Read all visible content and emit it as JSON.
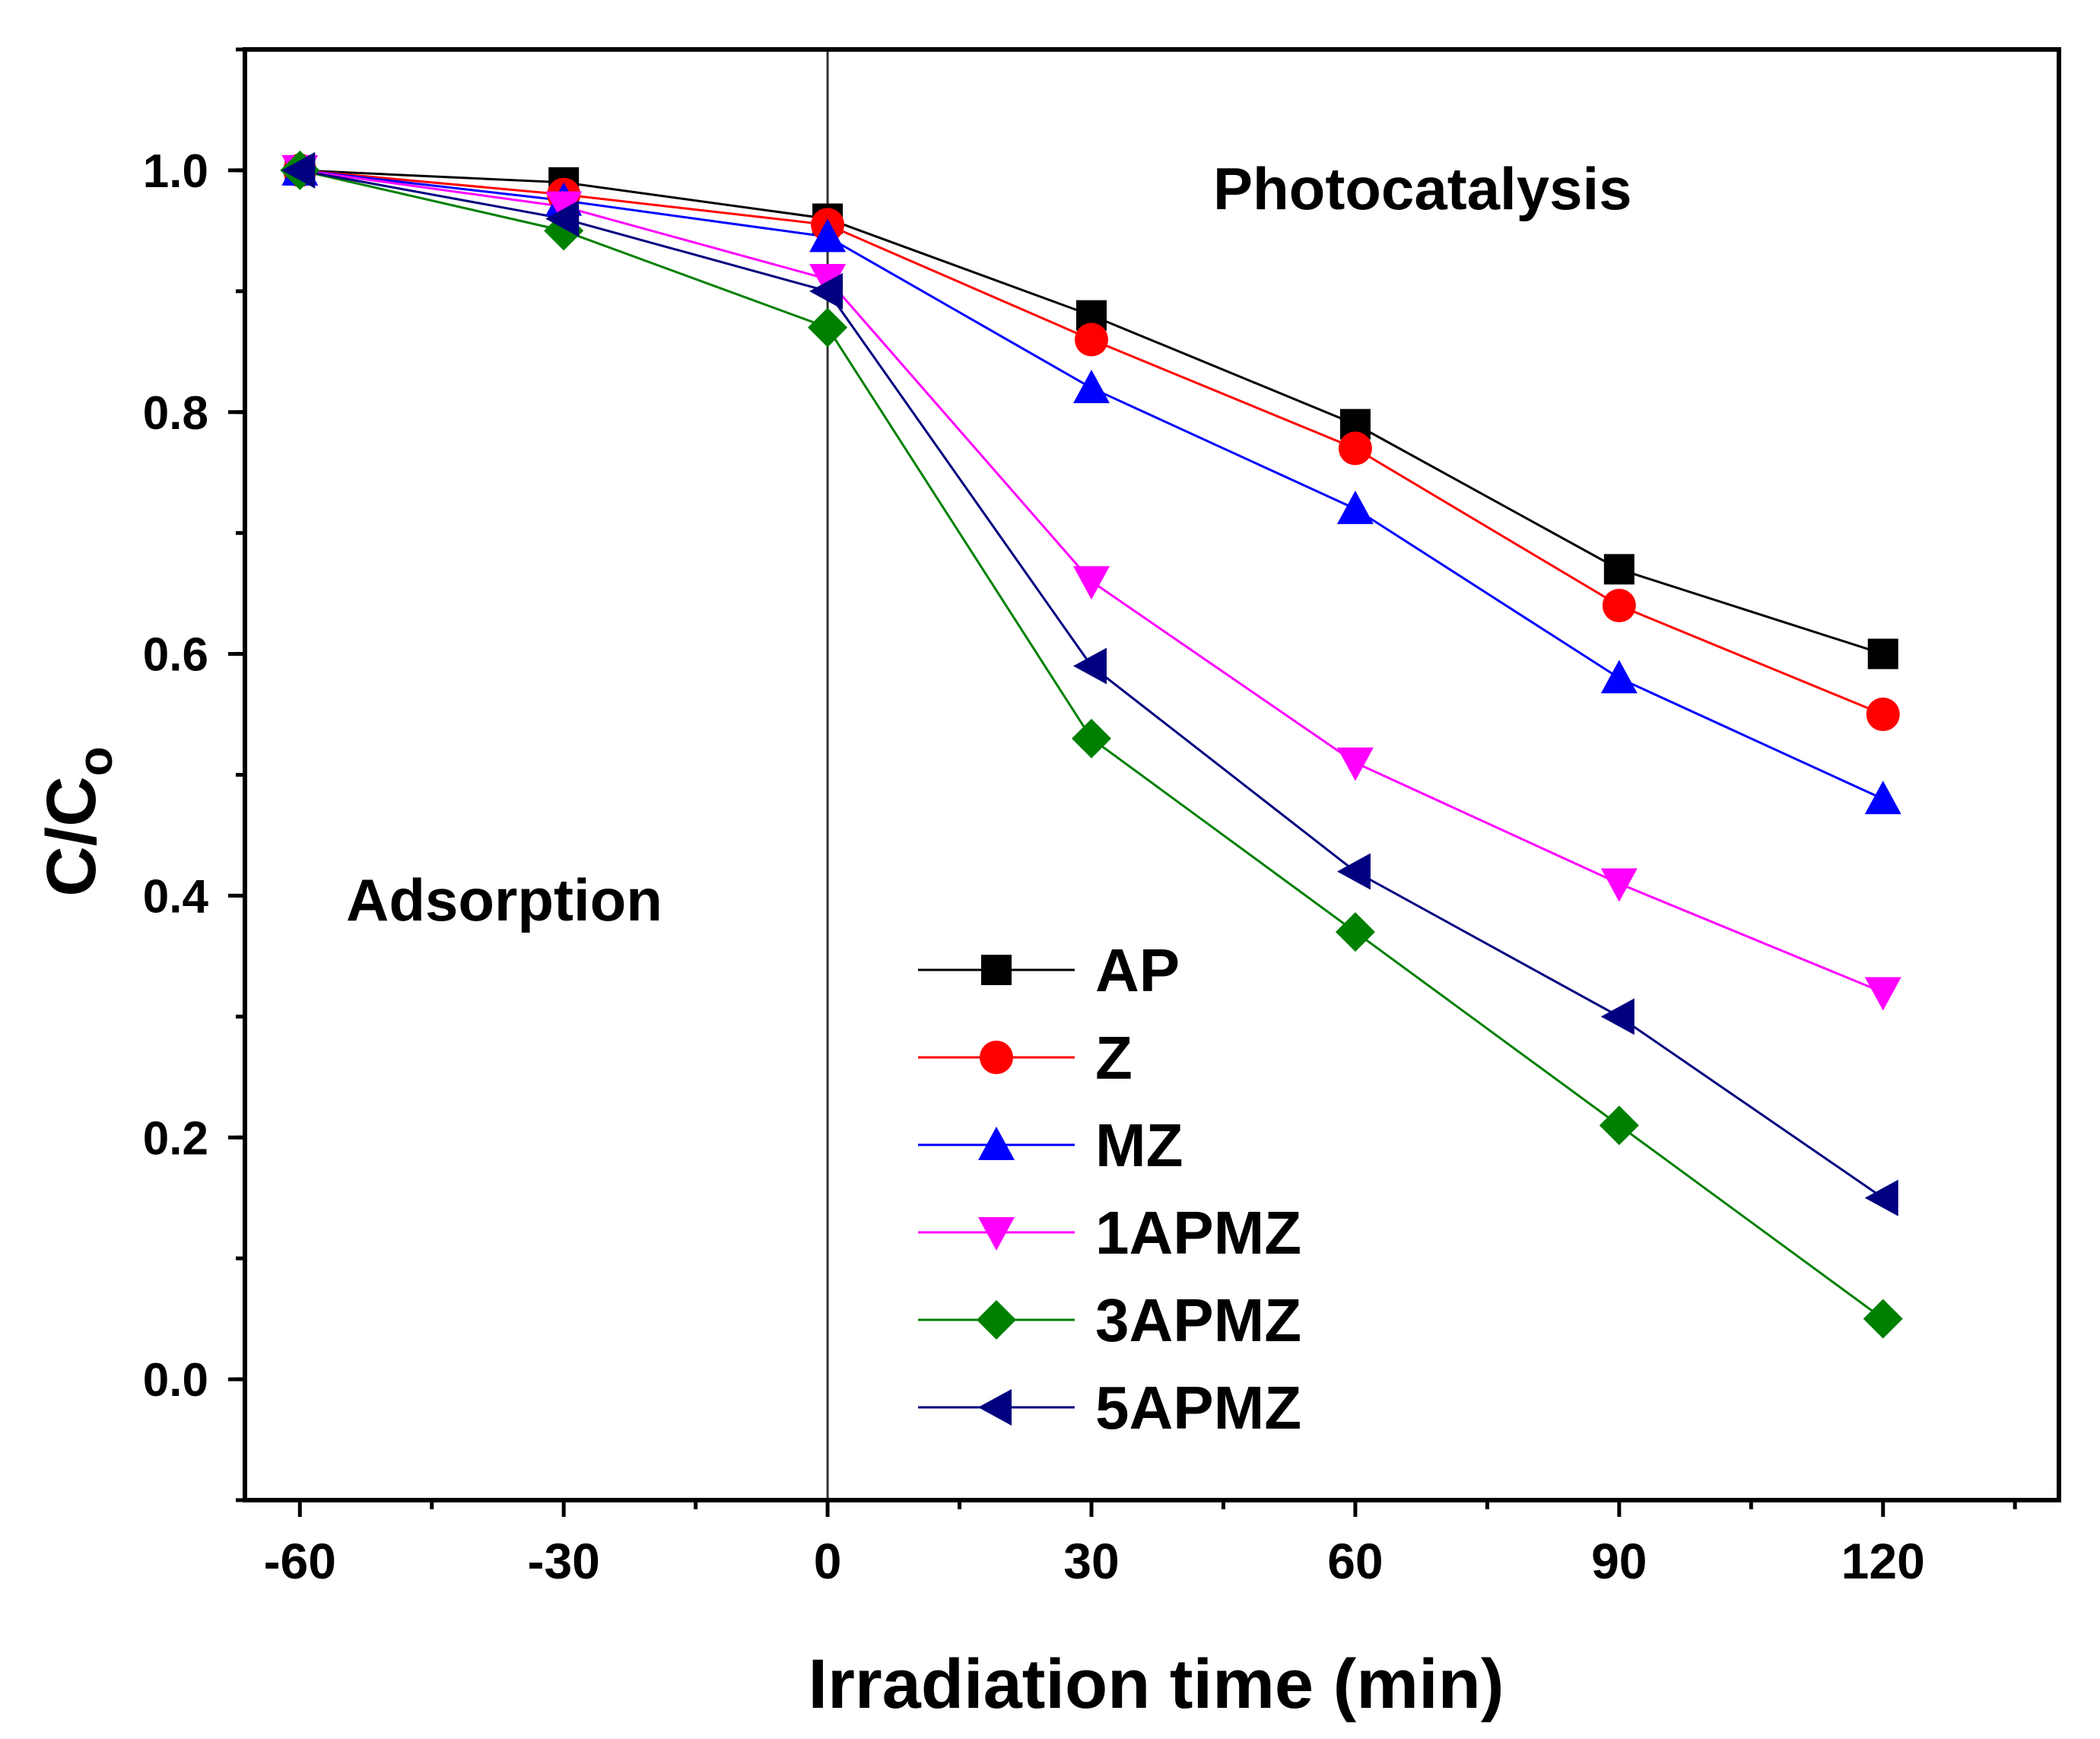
{
  "chart_data": {
    "type": "line",
    "title": "",
    "xlabel": "Irradiation time (min)",
    "ylabel": "C/C",
    "ylabel_subscript": "o",
    "xlim": [
      -66.25,
      140
    ],
    "ylim": [
      -0.1,
      1.1
    ],
    "xticks": [
      -60,
      -30,
      0,
      30,
      60,
      90,
      120
    ],
    "xtick_labels": [
      "-60",
      "-30",
      "0",
      "30",
      "60",
      "90",
      "120"
    ],
    "yticks": [
      0.0,
      0.2,
      0.4,
      0.6,
      0.8,
      1.0
    ],
    "ytick_labels": [
      "0.0",
      "0.2",
      "0.4",
      "0.6",
      "0.8",
      "1.0"
    ],
    "grid": false,
    "legend_position": "center-bottom",
    "divider_x": 0,
    "annotations": [
      {
        "text": "Adsorption",
        "x": -20,
        "y": 0.4
      },
      {
        "text": "Photocatalysis",
        "x": 70,
        "y": 0.98
      }
    ],
    "x": [
      -60,
      -30,
      0,
      30,
      60,
      90,
      120
    ],
    "series": [
      {
        "name": "AP",
        "color": "#000000",
        "marker": "square",
        "values": [
          1.0,
          0.99,
          0.96,
          0.88,
          0.79,
          0.67,
          0.6
        ]
      },
      {
        "name": "Z",
        "color": "#ff0000",
        "marker": "circle",
        "values": [
          1.0,
          0.98,
          0.955,
          0.86,
          0.77,
          0.64,
          0.55
        ]
      },
      {
        "name": "MZ",
        "color": "#0000ff",
        "marker": "triangle-up",
        "values": [
          1.0,
          0.975,
          0.945,
          0.82,
          0.72,
          0.58,
          0.48
        ]
      },
      {
        "name": "1APMZ",
        "color": "#ff00ff",
        "marker": "triangle-down",
        "values": [
          1.0,
          0.97,
          0.91,
          0.66,
          0.51,
          0.41,
          0.32
        ]
      },
      {
        "name": "3APMZ",
        "color": "#008000",
        "marker": "diamond",
        "values": [
          1.0,
          0.95,
          0.87,
          0.53,
          0.37,
          0.21,
          0.05
        ]
      },
      {
        "name": "5APMZ",
        "color": "#000080",
        "marker": "triangle-left",
        "values": [
          1.0,
          0.96,
          0.9,
          0.59,
          0.42,
          0.3,
          0.15
        ]
      }
    ]
  }
}
